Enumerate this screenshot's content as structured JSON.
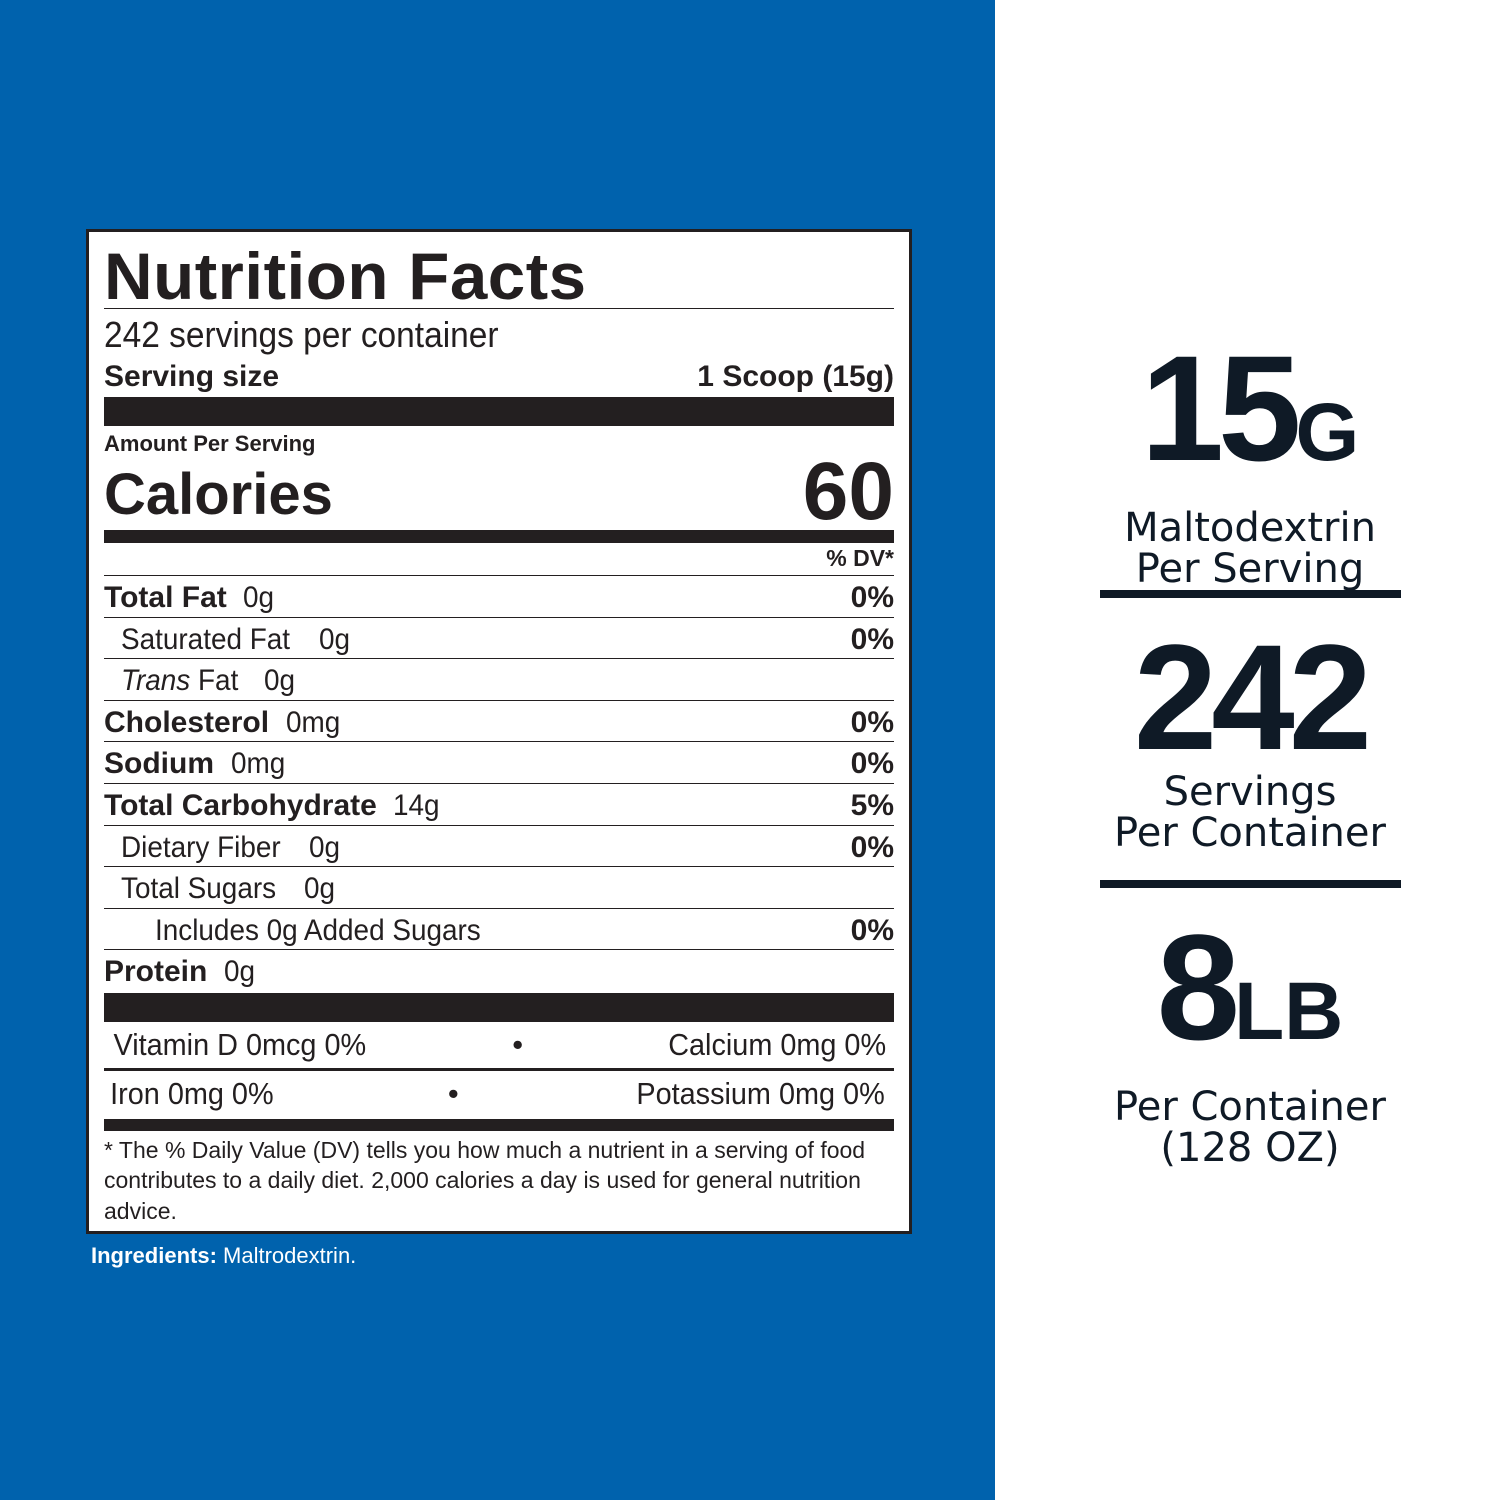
{
  "colors": {
    "panel": "#0062ad",
    "ink": "#231f20",
    "stat_ink": "#0f1a26"
  },
  "label": {
    "title": "Nutrition Facts",
    "servings": "242 servings per container",
    "serving_size_label": "Serving size",
    "serving_size_value": "1 Scoop (15g)",
    "amount_per_serving": "Amount Per Serving",
    "calories_label": "Calories",
    "calories_value": "60",
    "dv_header": "% DV*",
    "rows": [
      {
        "name": "Total Fat",
        "amount": "0g",
        "dv": "0%"
      },
      {
        "name": "Saturated Fat",
        "amount": "0g",
        "dv": "0%"
      },
      {
        "name": "Trans",
        "name_rest": "Fat",
        "amount": "0g",
        "dv": ""
      },
      {
        "name": "Cholesterol",
        "amount": "0mg",
        "dv": "0%"
      },
      {
        "name": "Sodium",
        "amount": "0mg",
        "dv": "0%"
      },
      {
        "name": "Total Carbohydrate",
        "amount": "14g",
        "dv": "5%"
      },
      {
        "name": "Dietary Fiber",
        "amount": "0g",
        "dv": "0%"
      },
      {
        "name": "Total Sugars",
        "amount": "0g",
        "dv": ""
      },
      {
        "name": "Includes 0g Added Sugars",
        "amount": "",
        "dv": "0%"
      },
      {
        "name": "Protein",
        "amount": "0g",
        "dv": ""
      }
    ],
    "vitamins": [
      {
        "left": "Vitamin D  0mcg  0%",
        "right": "Calcium  0mg  0%"
      },
      {
        "left": "Iron  0mg  0%",
        "right": "Potassium  0mg  0%"
      }
    ],
    "bullet": "•",
    "footnote": "* The % Daily Value (DV) tells you how much a nutrient in a serving of food contributes to a daily diet. 2,000 calories a day is used for general nutrition advice."
  },
  "ingredients": {
    "label": "Ingredients:",
    "value": " Maltrodextrin."
  },
  "stats": [
    {
      "number": "15",
      "unit": "G",
      "line1": "Maltodextrin",
      "line2": "Per Serving"
    },
    {
      "number": "242",
      "unit": "",
      "line1": "Servings",
      "line2": "Per Container"
    },
    {
      "number": "8",
      "unit": "LB",
      "line1": "Per Container",
      "line2": "(128 OZ)"
    }
  ]
}
